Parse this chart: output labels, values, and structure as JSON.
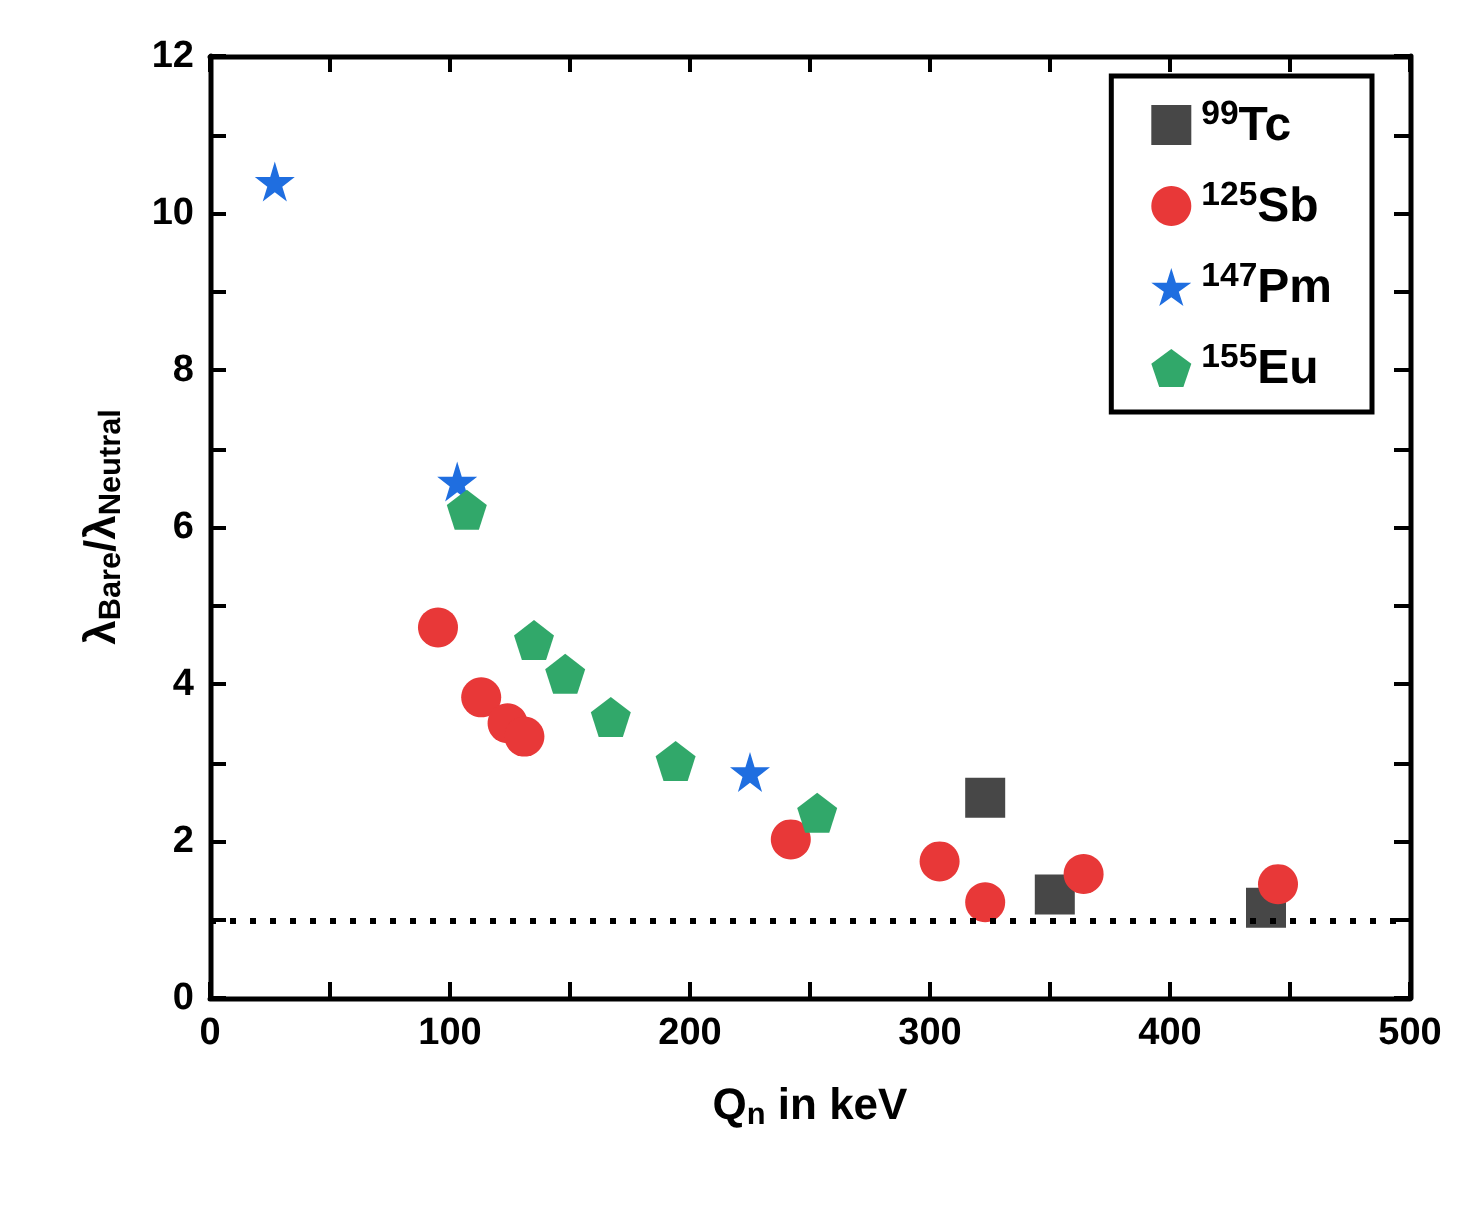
{
  "chart_data": {
    "type": "scatter",
    "xlabel": "Q$_{n}$ in keV",
    "ylabel": "λ$_{Bare}$/λ$_{Neutral}$",
    "xlim": [
      0,
      500
    ],
    "xticks": [
      0,
      100,
      200,
      300,
      400,
      500
    ],
    "ylim": [
      0,
      12
    ],
    "yticks": [
      0,
      2,
      4,
      6,
      8,
      10,
      12
    ],
    "grid": false,
    "legend": "top right",
    "series": [
      {
        "name": "$^{99}$Tc",
        "color": "#474747",
        "marker": "square",
        "x": [
          323,
          352,
          440
        ],
        "values": [
          2.55,
          1.32,
          1.15
        ]
      },
      {
        "name": "$^{125}$Sb",
        "color": "#e83838",
        "marker": "circle",
        "x": [
          95,
          113,
          124,
          131,
          242,
          304,
          323,
          364,
          445
        ],
        "values": [
          4.72,
          3.83,
          3.5,
          3.33,
          2.02,
          1.74,
          1.22,
          1.58,
          1.45
        ]
      },
      {
        "name": "$^{147}$Pm",
        "color": "#1f6ee0",
        "marker": "star",
        "x": [
          27,
          103,
          225
        ],
        "values": [
          10.4,
          6.58,
          2.88
        ]
      },
      {
        "name": "$^{155}$Eu",
        "color": "#31a86a",
        "x": [
          107,
          135,
          148,
          167,
          194,
          253
        ],
        "values": [
          6.22,
          4.56,
          4.13,
          3.58,
          3.02,
          2.36
        ]
      }
    ],
    "ref_lines": [
      {
        "axis": "y",
        "value": 1,
        "color": "#000000",
        "line_style": "dotted"
      }
    ]
  }
}
